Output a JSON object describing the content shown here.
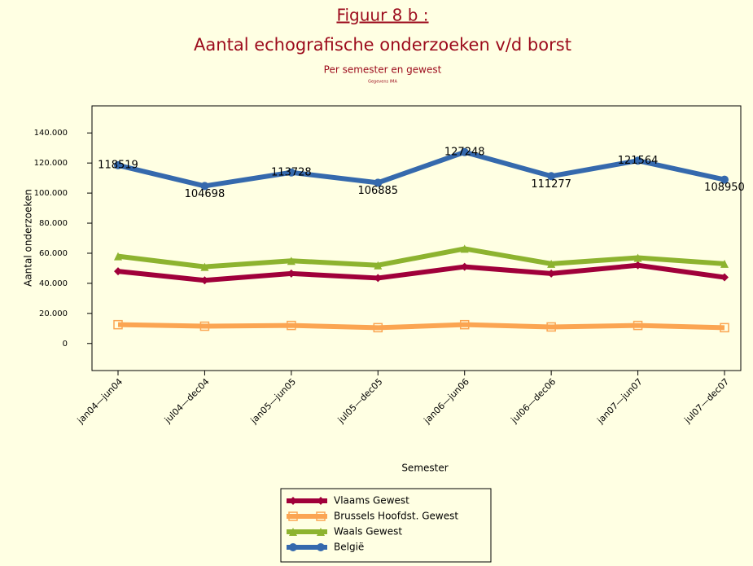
{
  "chart_data": {
    "type": "line",
    "title": "Figuur 8 b :",
    "subtitle": "Aantal echografische onderzoeken v/d borst",
    "subtitle2": "Per semester en gewest",
    "note": "Gegevens IMA",
    "y_label": "Aantal onderzoeken",
    "x_label": "Semester",
    "categories": [
      "jan04—jun04",
      "jul04—dec04",
      "jan05—jun05",
      "jul05—dec05",
      "jan06—jun06",
      "jul06—dec06",
      "jan07—jun07",
      "jul07—dec07"
    ],
    "series": [
      {
        "name": "Vlaams Gewest",
        "color": "#a0003a",
        "marker": "diamond",
        "values": [
          48000,
          42000,
          46500,
          43500,
          51000,
          46500,
          52000,
          44000
        ]
      },
      {
        "name": "Brussels Hoofdst. Gewest",
        "color": "#fba552",
        "marker": "square",
        "values": [
          12500,
          11500,
          12000,
          10500,
          12500,
          11000,
          12000,
          10500
        ]
      },
      {
        "name": "Waals Gewest",
        "color": "#8db32f",
        "marker": "triangle",
        "values": [
          58000,
          51000,
          55000,
          52000,
          63000,
          53000,
          57000,
          53000
        ]
      },
      {
        "name": "België",
        "color": "#3569ad",
        "marker": "circle",
        "data_labels": true,
        "values": [
          118519,
          104698,
          113728,
          106885,
          127248,
          111277,
          121564,
          108950
        ]
      }
    ],
    "ylim": [
      -18000,
      158000
    ],
    "yticks": [
      0,
      {
        "value": 20000,
        "label": "20.000"
      },
      {
        "value": 40000,
        "label": "40.000"
      },
      {
        "value": 60000,
        "label": "60.000"
      },
      {
        "value": 80000,
        "label": "80.000"
      },
      {
        "value": 100000,
        "label": "100.000"
      },
      {
        "value": 120000,
        "label": "120.000"
      },
      {
        "value": 140000,
        "label": "140.000"
      }
    ]
  }
}
